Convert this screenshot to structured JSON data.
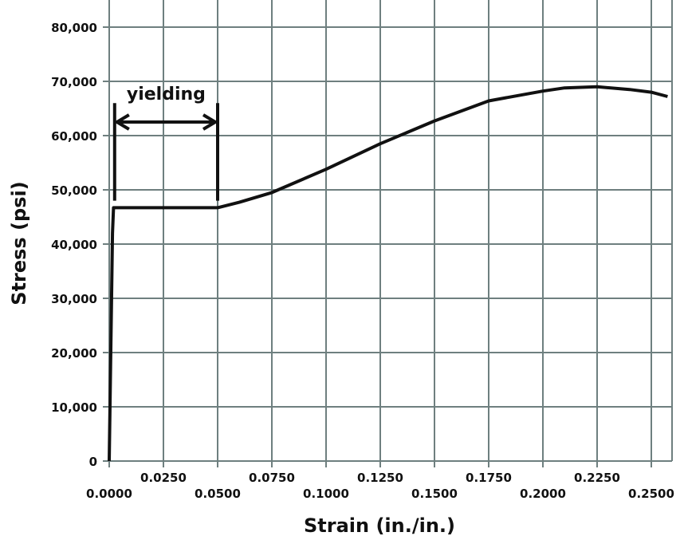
{
  "chart_data": {
    "type": "line",
    "title": "",
    "xlabel": "Strain (in./in.)",
    "ylabel": "Stress (psi)",
    "xlim": [
      0,
      0.2575
    ],
    "ylim": [
      0,
      80000
    ],
    "grid": true,
    "x_tick_labels": [
      "0.0000",
      "0.0250",
      "0.0500",
      "0.0750",
      "0.1000",
      "0.1250",
      "0.1500",
      "0.1750",
      "0.2000",
      "0.2250",
      "0.2500"
    ],
    "y_tick_labels": [
      "0",
      "10,000",
      "20,000",
      "30,000",
      "40,000",
      "50,000",
      "60,000",
      "70,000",
      "80,000"
    ],
    "series": [
      {
        "color": "#111111",
        "points": [
          [
            0.0,
            0
          ],
          [
            0.0015,
            42000
          ],
          [
            0.002,
            46700
          ],
          [
            0.01,
            46700
          ],
          [
            0.02,
            46700
          ],
          [
            0.03,
            46700
          ],
          [
            0.04,
            46700
          ],
          [
            0.05,
            46700
          ],
          [
            0.06,
            47700
          ],
          [
            0.075,
            49500
          ],
          [
            0.1,
            53800
          ],
          [
            0.125,
            58500
          ],
          [
            0.15,
            62700
          ],
          [
            0.175,
            66400
          ],
          [
            0.2,
            68200
          ],
          [
            0.21,
            68800
          ],
          [
            0.225,
            69000
          ],
          [
            0.24,
            68500
          ],
          [
            0.25,
            68000
          ],
          [
            0.2575,
            67200
          ]
        ]
      }
    ],
    "annotations": [
      {
        "text": "yielding",
        "x_start": 0.0025,
        "x_end": 0.05,
        "y_arrow": 62500,
        "bracket_y": [
          48000,
          66000
        ]
      }
    ]
  }
}
